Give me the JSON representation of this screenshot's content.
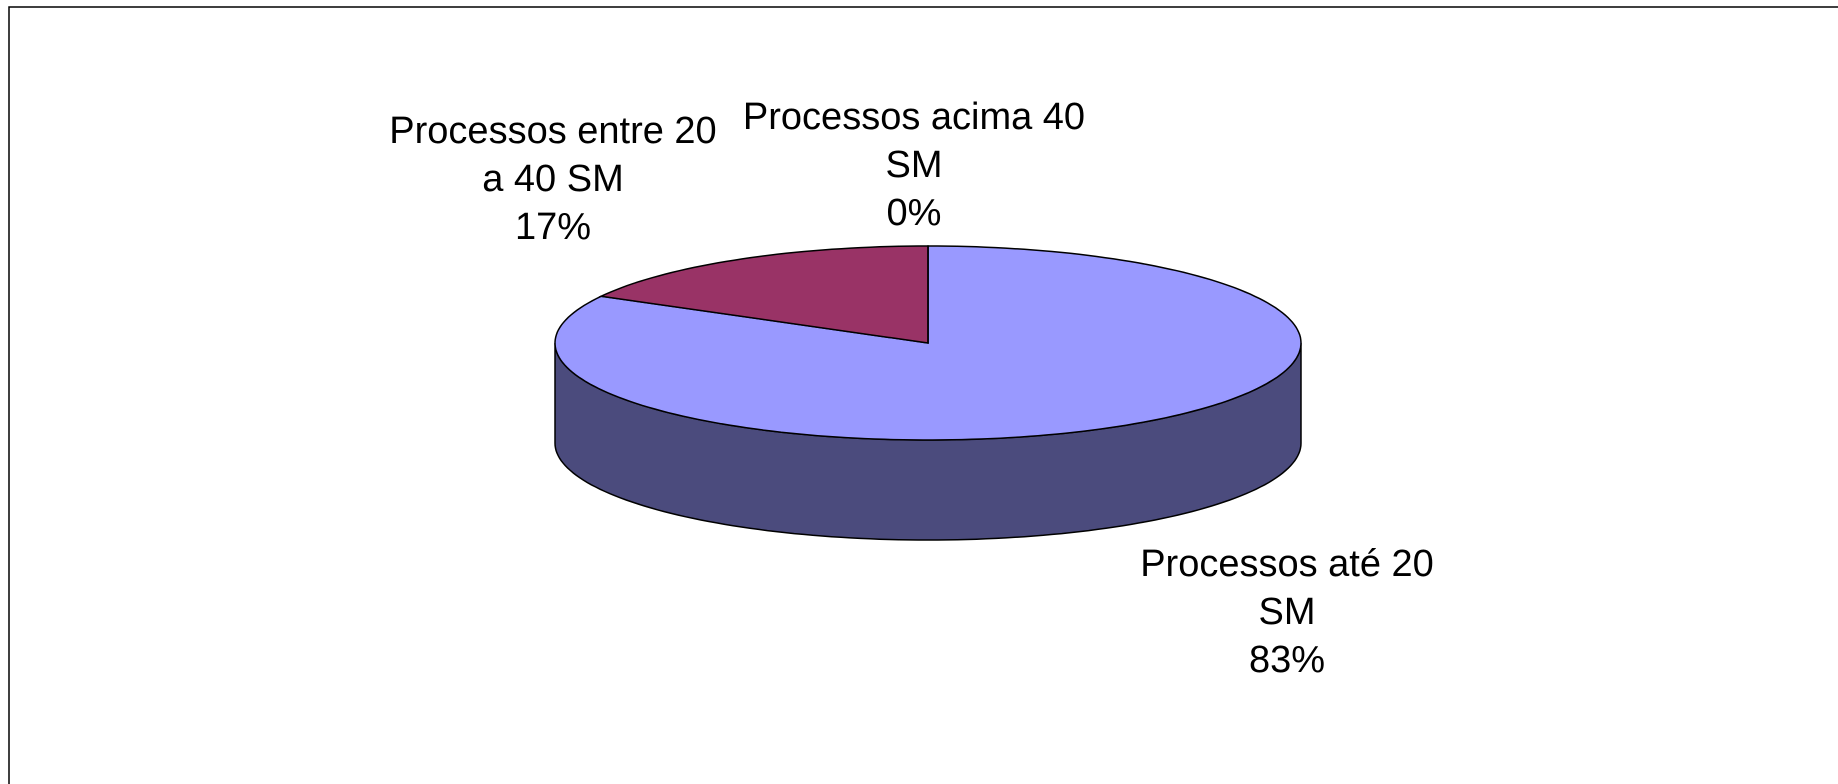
{
  "chart_data": {
    "type": "pie3d",
    "categories": [
      "Processos até 20 SM",
      "Processos entre 20 a 40 SM",
      "Processos acima 40 SM"
    ],
    "values": [
      83,
      17,
      0
    ],
    "value_labels": [
      "83%",
      "17%",
      "0%"
    ],
    "colors": [
      "#9999ff",
      "#993366",
      "#ffffcc"
    ]
  }
}
